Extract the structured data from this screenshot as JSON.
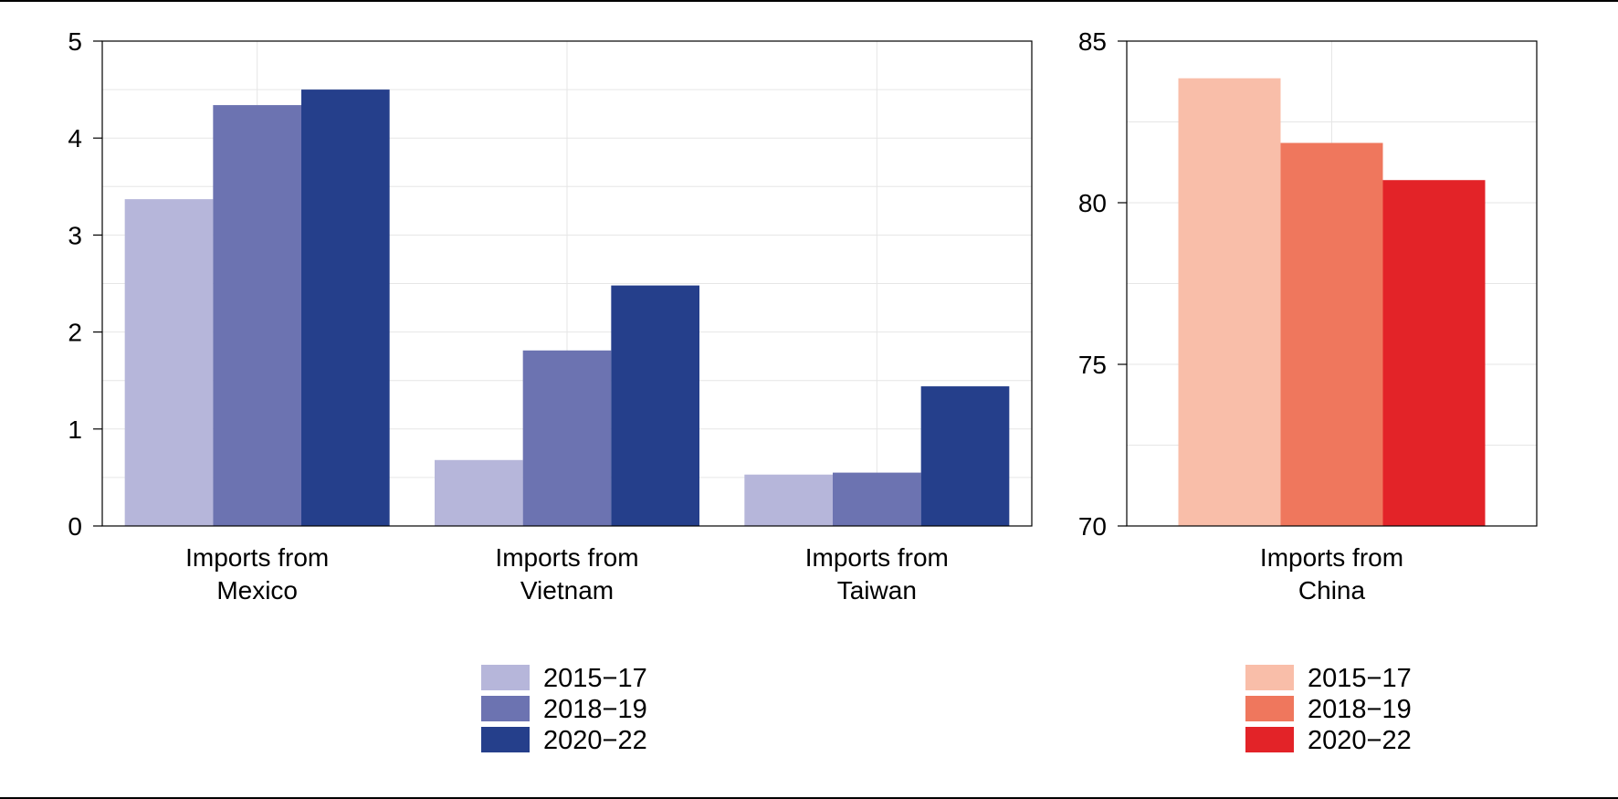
{
  "chart_data": [
    {
      "type": "bar",
      "categories": [
        [
          "Imports from",
          "Mexico"
        ],
        [
          "Imports from",
          "Vietnam"
        ],
        [
          "Imports from",
          "Taiwan"
        ]
      ],
      "series": [
        {
          "name": "2015−17",
          "color": "#b6b6da",
          "values": [
            3.37,
            0.68,
            0.53
          ]
        },
        {
          "name": "2018−19",
          "color": "#6c73b1",
          "values": [
            4.34,
            1.81,
            0.55
          ]
        },
        {
          "name": "2020−22",
          "color": "#253f8b",
          "values": [
            4.5,
            2.48,
            1.44
          ]
        }
      ],
      "ylim": [
        0,
        5
      ],
      "yticks": [
        "0",
        "1",
        "2",
        "3",
        "4",
        "5"
      ],
      "grid": true,
      "legend": "bottom"
    },
    {
      "type": "bar",
      "categories": [
        [
          "Imports from",
          "China"
        ]
      ],
      "series": [
        {
          "name": "2015−17",
          "color": "#f9bea9",
          "values": [
            83.85
          ]
        },
        {
          "name": "2018−19",
          "color": "#ef775d",
          "values": [
            81.85
          ]
        },
        {
          "name": "2020−22",
          "color": "#e32328",
          "values": [
            80.7
          ]
        }
      ],
      "ylim": [
        70,
        85
      ],
      "yticks": [
        "70",
        "75",
        "80",
        "85"
      ],
      "grid": true,
      "legend": "bottom"
    }
  ]
}
